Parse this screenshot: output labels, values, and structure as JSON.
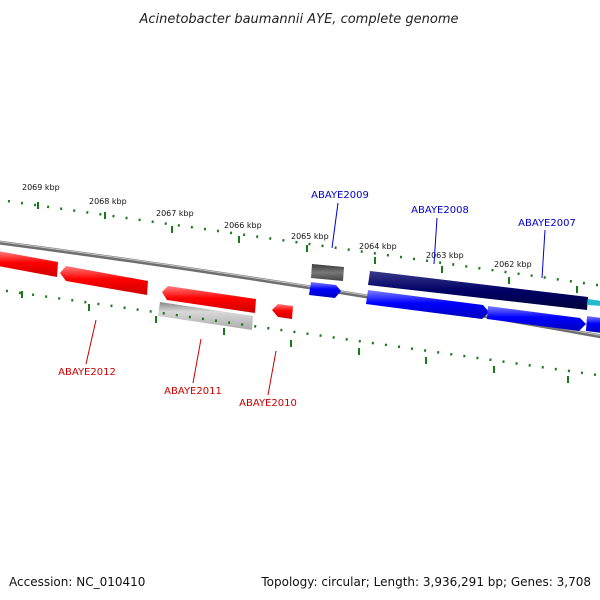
{
  "title": "Acinetobacter baumannii AYE, complete genome",
  "footer": {
    "accession": "Accession: NC_010410",
    "summary": "Topology: circular; Length: 3,936,291 bp; Genes: 3,708"
  },
  "kbp_labels": [
    "2069 kbp",
    "2068 kbp",
    "2067 kbp",
    "2066 kbp",
    "2065 kbp",
    "2064 kbp",
    "2063 kbp",
    "2062 kbp"
  ],
  "gene_labels_top": [
    "ABAYE2009",
    "ABAYE2008",
    "ABAYE2007"
  ],
  "gene_labels_bottom": [
    "ABAYE2012",
    "ABAYE2011",
    "ABAYE2010"
  ],
  "colors": {
    "reverse_strand": "#ff0000",
    "forward_strand": "#0000ff",
    "dark_navy": "#000066",
    "grey": "#bbbbbb",
    "dark_grey": "#666666",
    "tick_green": "#1a7a1a",
    "backbone": "#888888",
    "label_red": "#cc0000",
    "label_blue": "#0000cc"
  }
}
